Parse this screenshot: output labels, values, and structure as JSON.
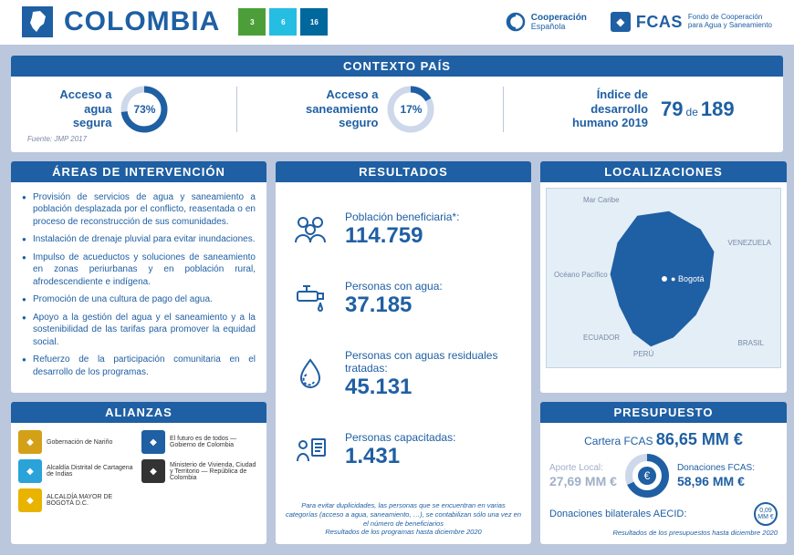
{
  "header": {
    "country": "COLOMBIA",
    "sdg": [
      {
        "num": "3",
        "color": "#4c9f38"
      },
      {
        "num": "6",
        "color": "#26bde2"
      },
      {
        "num": "16",
        "color": "#00689d"
      }
    ],
    "coop_label": "Cooperación",
    "coop_sub": "Española",
    "fcas_label": "FCAS",
    "fcas_sub1": "Fondo de Cooperación",
    "fcas_sub2": "para Agua y Saneamiento"
  },
  "context": {
    "title": "CONTEXTO PAÍS",
    "water_label": "Acceso a\nagua\nsegura",
    "water_pct": 73,
    "san_label": "Acceso a\nsaneamiento\nseguro",
    "san_pct": 17,
    "hdi_label": "Índice de\ndesarrollo\nhumano 2019",
    "hdi_rank": "79",
    "hdi_de": "de",
    "hdi_total": "189",
    "source": "Fuente: JMP 2017",
    "donut_fg": "#1f5fa3",
    "donut_bg": "#cdd8ea"
  },
  "areas": {
    "title": "ÁREAS DE INTERVENCIÓN",
    "items": [
      "Provisión de servicios de agua y saneamiento a población desplazada por el conflicto, reasentada o en proceso de reconstrucción de sus comunidades.",
      "Instalación de drenaje pluvial para evitar inundaciones.",
      "Impulso de acueductos y soluciones de saneamiento en zonas periurbanas y en población rural, afrodescendiente e indígena.",
      "Promoción de una cultura de pago del agua.",
      "Apoyo a la gestión del agua y el saneamiento y a la sostenibilidad de las tarifas para promover la equidad social.",
      "Refuerzo de la participación comunitaria en el desarrollo de los programas."
    ]
  },
  "alianzas": {
    "title": "ALIANZAS",
    "items": [
      {
        "label": "Gobernación de Nariño",
        "color": "#d4a017"
      },
      {
        "label": "El futuro es de todos — Gobierno de Colombia",
        "color": "#1f5fa3"
      },
      {
        "label": "Alcaldía Distrital de Cartagena de Indias",
        "color": "#2aa3d9"
      },
      {
        "label": "Ministerio de Vivienda, Ciudad y Territorio — República de Colombia",
        "color": "#333333"
      },
      {
        "label": "ALCALDÍA MAYOR DE BOGOTÁ D.C.",
        "color": "#e8b400"
      }
    ]
  },
  "resultados": {
    "title": "RESULTADOS",
    "items": [
      {
        "icon": "people",
        "label": "Población beneficiaria*:",
        "value": "114.759"
      },
      {
        "icon": "tap",
        "label": "Personas con agua:",
        "value": "37.185"
      },
      {
        "icon": "droplet",
        "label": "Personas con aguas residuales tratadas:",
        "value": "45.131"
      },
      {
        "icon": "training",
        "label": "Personas capacitadas:",
        "value": "1.431"
      }
    ],
    "footer1": "Para evitar duplicidades, las personas que se encuentran en varias categorías (acceso a agua, saneamiento, …), se contabilizan sólo una vez en el número de beneficiarios",
    "footer2": "Resultados de los programas hasta diciembre 2020"
  },
  "local": {
    "title": "LOCALIZACIONES",
    "capital": "Bogotá",
    "neighbors": [
      "VENEZUELA",
      "ECUADOR",
      "PERÚ",
      "BRASIL"
    ],
    "seas": [
      "Mar Caribe",
      "Océano Pacífico"
    ]
  },
  "presupuesto": {
    "title": "PRESUPUESTO",
    "cartera_label": "Cartera FCAS",
    "cartera_value": "86,65 MM €",
    "aporte_label": "Aporte Local:",
    "aporte_value": "27,69 MM €",
    "donac_label": "Donaciones FCAS:",
    "donac_value": "58,96 MM €",
    "donac_pct": 68,
    "bilat_label": "Donaciones bilaterales AECID:",
    "bilat_value": "0,09 MM €",
    "footer": "Resultados de los presupuestos hasta diciembre 2020",
    "donut_fg": "#1f5fa3",
    "donut_bg": "#cdd8ea"
  },
  "colors": {
    "primary": "#1f5fa3",
    "bg": "#bbc7dd",
    "panel": "#ffffff"
  }
}
